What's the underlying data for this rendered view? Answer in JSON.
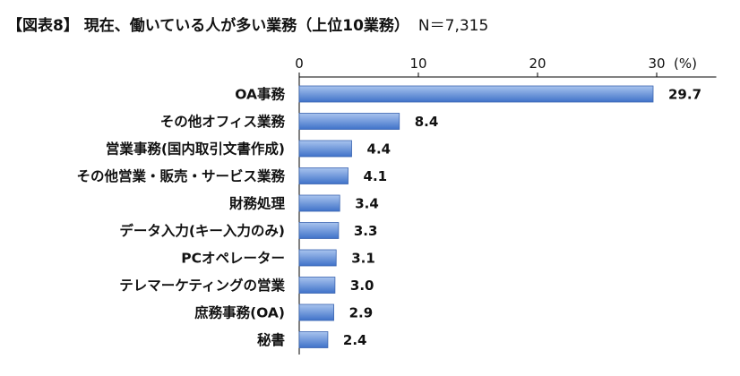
{
  "header": {
    "title": "【図表8】 現在、働いている人が多い業務（上位10業務）",
    "sample": "N＝7,315"
  },
  "chart_data": {
    "type": "bar",
    "orientation": "horizontal",
    "title": "【図表8】 現在、働いている人が多い業務（上位10業務）",
    "xlabel": "(%)",
    "ylabel": "",
    "xlim": [
      0,
      35
    ],
    "xticks": [
      0,
      10,
      20,
      30
    ],
    "grid": false,
    "categories": [
      "OA事務",
      "その他オフィス業務",
      "営業事務(国内取引文書作成)",
      "その他営業・販売・サービス業務",
      "財務処理",
      "データ入力(キー入力のみ)",
      "PCオペレーター",
      "テレマーケティングの営業",
      "庶務事務(OA)",
      "秘書"
    ],
    "values": [
      29.7,
      8.4,
      4.4,
      4.1,
      3.4,
      3.3,
      3.1,
      3.0,
      2.9,
      2.4
    ],
    "colors": {
      "bar_top": "#a9c4ee",
      "bar_bottom": "#3f72c9",
      "bar_stroke": "#3a64b0",
      "axis": "#000000"
    }
  }
}
